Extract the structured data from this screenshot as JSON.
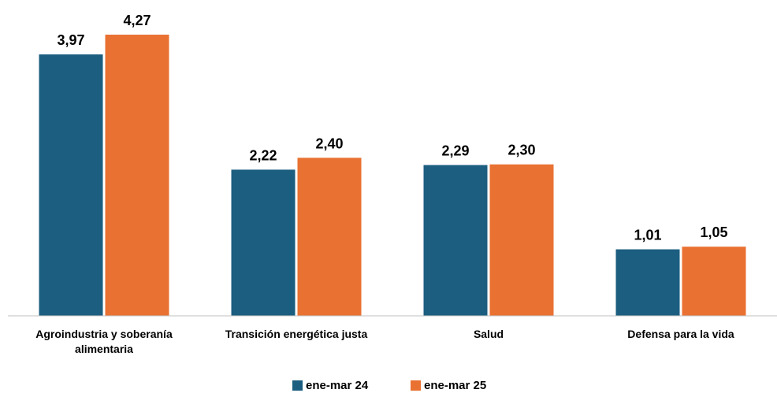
{
  "chart_data": {
    "type": "bar",
    "categories": [
      "Agroindustria y soberanía alimentaria",
      "Transición energética justa",
      "Salud",
      "Defensa para la vida"
    ],
    "series": [
      {
        "name": "ene-mar 24",
        "color": "#1b5e80",
        "values": [
          3.97,
          2.22,
          2.29,
          1.01
        ],
        "value_labels": [
          "3,97",
          "2,22",
          "2,29",
          "1,01"
        ]
      },
      {
        "name": "ene-mar 25",
        "color": "#e97132",
        "values": [
          4.27,
          2.4,
          2.3,
          1.05
        ],
        "value_labels": [
          "4,27",
          "2,40",
          "2,30",
          "1,05"
        ]
      }
    ]
  }
}
